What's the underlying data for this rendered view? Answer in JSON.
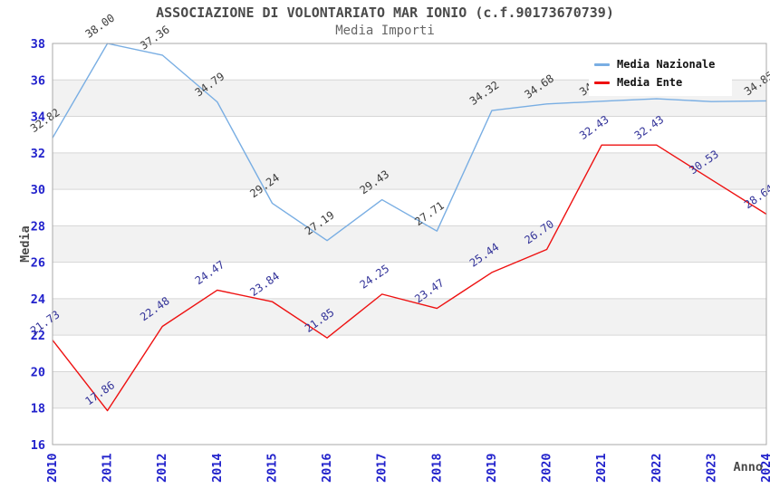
{
  "title": "ASSOCIAZIONE DI VOLONTARIATO MAR IONIO (c.f.90173670739)",
  "subtitle": "Media Importi",
  "chart_data": {
    "type": "line",
    "x": [
      2010,
      2011,
      2012,
      2014,
      2015,
      2016,
      2017,
      2018,
      2019,
      2020,
      2021,
      2022,
      2023,
      2024
    ],
    "xlabel": "Anno",
    "ylabel": "Media",
    "ylim": [
      16,
      38
    ],
    "yticks": [
      16,
      18,
      20,
      22,
      24,
      26,
      28,
      30,
      32,
      34,
      36,
      38
    ],
    "grid": "horizontal-only, alternating gray bands every 2 units",
    "legend_position": "top-right inside plot, white box overlapping chart",
    "series": [
      {
        "name": "Media Nazionale",
        "color": "#79aee3",
        "label_color": "#3c3c3c",
        "values": [
          32.82,
          38.0,
          37.36,
          34.79,
          29.24,
          27.19,
          29.43,
          27.71,
          34.32,
          34.68,
          34.83,
          34.97,
          34.81,
          34.85
        ],
        "labels": [
          "32.82",
          "38.00",
          "37.36",
          "34.79",
          "29.24",
          "27.19",
          "29.43",
          "27.71",
          "34.32",
          "34.68",
          "34.83",
          "",
          "",
          "34.85"
        ]
      },
      {
        "name": "Media Ente",
        "color": "#ee1111",
        "label_color": "#333399",
        "values": [
          21.73,
          17.86,
          22.48,
          24.47,
          23.84,
          21.85,
          24.25,
          23.47,
          25.44,
          26.7,
          32.43,
          32.43,
          30.53,
          28.64
        ],
        "labels": [
          "21.73",
          "17.86",
          "22.48",
          "24.47",
          "23.84",
          "21.85",
          "24.25",
          "23.47",
          "25.44",
          "26.70",
          "32.43",
          "32.43",
          "30.53",
          "28.64"
        ]
      }
    ],
    "style_colors": {
      "tick_label_color": "#2222cc",
      "axis_title_color": "#4a4a4a",
      "plot_border": "#a8a8a8",
      "gridline": "#d6d6d6",
      "band_gray": "#f2f2f2",
      "background": "#ffffff"
    }
  }
}
